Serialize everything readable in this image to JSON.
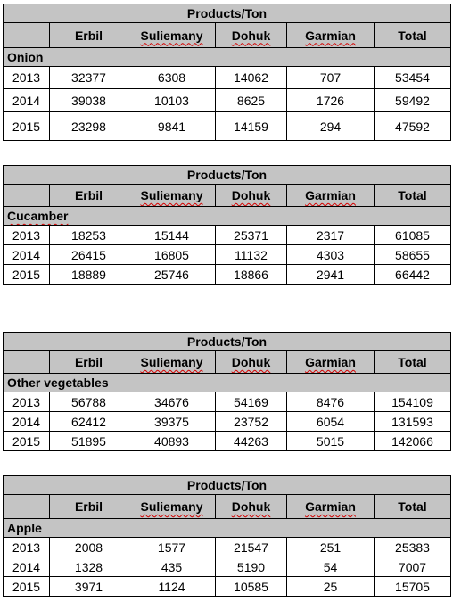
{
  "tables": [
    {
      "title": "Products/Ton",
      "columns": [
        "",
        "Erbil",
        "Suliemany",
        "Dohuk",
        "Garmian",
        "Total"
      ],
      "category": "Onion",
      "rows": [
        [
          "2013",
          "32377",
          "6308",
          "14062",
          "707",
          "53454"
        ],
        [
          "2014",
          "39038",
          "10103",
          "8625",
          "1726",
          "59492"
        ],
        [
          "2015",
          "23298",
          "9841",
          "14159",
          "294",
          "47592"
        ]
      ]
    },
    {
      "title": "Products/Ton",
      "columns": [
        "",
        "Erbil",
        "Suliemany",
        "Dohuk",
        "Garmian",
        "Total"
      ],
      "category": "Cucamber",
      "rows": [
        [
          "2013",
          "18253",
          "15144",
          "25371",
          "2317",
          "61085"
        ],
        [
          "2014",
          "26415",
          "16805",
          "11132",
          "4303",
          "58655"
        ],
        [
          "2015",
          "18889",
          "25746",
          "18866",
          "2941",
          "66442"
        ]
      ]
    },
    {
      "title": "Products/Ton",
      "columns": [
        "",
        "Erbil",
        "Suliemany",
        "Dohuk",
        "Garmian",
        "Total"
      ],
      "category": "Other vegetables",
      "rows": [
        [
          "2013",
          "56788",
          "34676",
          "54169",
          "8476",
          "154109"
        ],
        [
          "2014",
          "62412",
          "39375",
          "23752",
          "6054",
          "131593"
        ],
        [
          "2015",
          "51895",
          "40893",
          "44263",
          "5015",
          "142066"
        ]
      ]
    },
    {
      "title": "Products/Ton",
      "columns": [
        "",
        "Erbil",
        "Suliemany",
        "Dohuk",
        "Garmian",
        "Total"
      ],
      "category": "Apple",
      "rows": [
        [
          "2013",
          "2008",
          "1577",
          "21547",
          "251",
          "25383"
        ],
        [
          "2014",
          "1328",
          "435",
          "5190",
          "54",
          "7007"
        ],
        [
          "2015",
          "3971",
          "1124",
          "10585",
          "25",
          "15705"
        ]
      ]
    }
  ]
}
